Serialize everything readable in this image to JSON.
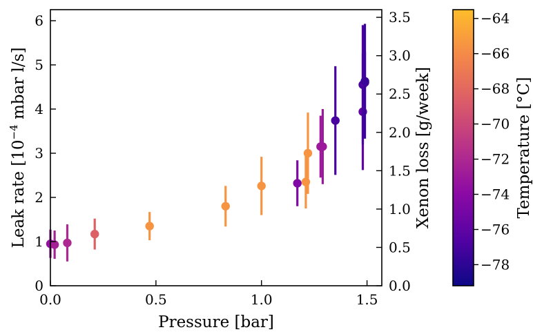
{
  "chart_data": {
    "type": "scatter",
    "xlabel": "Pressure [bar]",
    "ylabel": "Leak rate [10",
    "ylabel_sup": "−4",
    "ylabel_tail": " mbar l/s]",
    "y2label": "Xenon loss [g/week]",
    "colorbar_label": "Temperature [°C]",
    "xlim": [
      0.0,
      1.57
    ],
    "ylim": [
      0,
      6.25
    ],
    "y2lim": [
      0,
      3.6
    ],
    "clim": [
      -79.2,
      -63.5
    ],
    "xticks": [
      {
        "v": 0.0,
        "label": "0.0"
      },
      {
        "v": 0.5,
        "label": "0.5"
      },
      {
        "v": 1.0,
        "label": "1.0"
      },
      {
        "v": 1.5,
        "label": "1.5"
      }
    ],
    "yticks": [
      {
        "v": 0,
        "label": "0"
      },
      {
        "v": 1,
        "label": "1"
      },
      {
        "v": 2,
        "label": "2"
      },
      {
        "v": 3,
        "label": "3"
      },
      {
        "v": 4,
        "label": "4"
      },
      {
        "v": 5,
        "label": "5"
      },
      {
        "v": 6,
        "label": "6"
      }
    ],
    "y2ticks": [
      {
        "v": 0.0,
        "label": "0.0"
      },
      {
        "v": 0.5,
        "label": "0.5"
      },
      {
        "v": 1.0,
        "label": "1.0"
      },
      {
        "v": 1.5,
        "label": "1.5"
      },
      {
        "v": 2.0,
        "label": "2.0"
      },
      {
        "v": 2.5,
        "label": "2.5"
      },
      {
        "v": 3.0,
        "label": "3.0"
      },
      {
        "v": 3.5,
        "label": "3.5"
      }
    ],
    "cticks": [
      {
        "v": -64,
        "label": "−64"
      },
      {
        "v": -66,
        "label": "−66"
      },
      {
        "v": -68,
        "label": "−68"
      },
      {
        "v": -70,
        "label": "−70"
      },
      {
        "v": -72,
        "label": "−72"
      },
      {
        "v": -74,
        "label": "−74"
      },
      {
        "v": -76,
        "label": "−76"
      },
      {
        "v": -78,
        "label": "−78"
      }
    ],
    "colormap": "plasma",
    "colormap_stops": [
      "#0d0887",
      "#5302a3",
      "#8b0aa5",
      "#b83289",
      "#db5c68",
      "#f48849",
      "#febd2a"
    ],
    "grid": false,
    "points": [
      {
        "x": 0.0,
        "y": 0.95,
        "err": 0.32,
        "temp": -73.5
      },
      {
        "x": 0.02,
        "y": 0.93,
        "err": 0.32,
        "temp": -72.5
      },
      {
        "x": 0.08,
        "y": 0.97,
        "err": 0.42,
        "temp": -72.0
      },
      {
        "x": 0.21,
        "y": 1.17,
        "err": 0.35,
        "temp": -68.5
      },
      {
        "x": 0.47,
        "y": 1.35,
        "err": 0.32,
        "temp": -65.5
      },
      {
        "x": 0.83,
        "y": 1.8,
        "err": 0.46,
        "temp": -65.5
      },
      {
        "x": 1.0,
        "y": 2.26,
        "err": 0.66,
        "temp": -65.5
      },
      {
        "x": 1.17,
        "y": 2.32,
        "err": 0.52,
        "temp": -74.5
      },
      {
        "x": 1.21,
        "y": 2.35,
        "err": 0.6,
        "temp": -65.5
      },
      {
        "x": 1.22,
        "y": 3.0,
        "err": 0.92,
        "temp": -65.5
      },
      {
        "x": 1.28,
        "y": 3.15,
        "err": 0.7,
        "temp": -73.0
      },
      {
        "x": 1.29,
        "y": 3.15,
        "err": 0.85,
        "temp": -73.0
      },
      {
        "x": 1.35,
        "y": 3.74,
        "err": 1.23,
        "temp": -77.0
      },
      {
        "x": 1.48,
        "y": 3.94,
        "err": 1.32,
        "temp": -76.0
      },
      {
        "x": 1.48,
        "y": 4.55,
        "err": 1.35,
        "temp": -77.0
      },
      {
        "x": 1.49,
        "y": 4.6,
        "err": 0.7,
        "temp": -76.5
      },
      {
        "x": 1.49,
        "y": 4.63,
        "err": 1.3,
        "temp": -77.5
      }
    ]
  }
}
